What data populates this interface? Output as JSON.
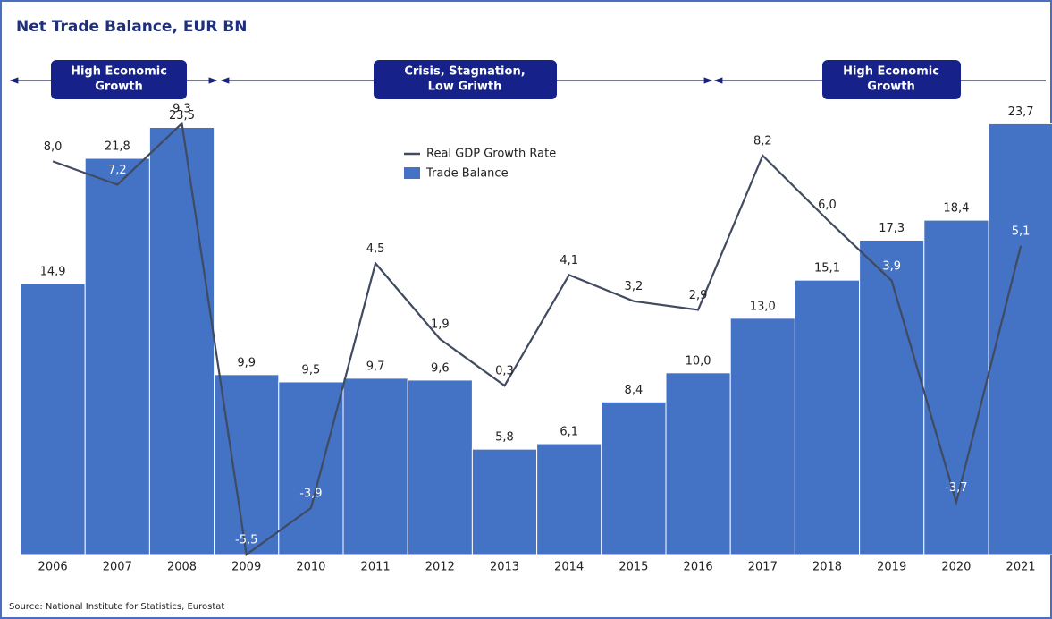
{
  "chart_data": {
    "type": "bar_line",
    "title": "Net Trade Balance, EUR BN",
    "source": "Source:  National Institute for Statistics, Eurostat",
    "annotations": [
      {
        "lines": [
          "High Economic",
          "Growth"
        ]
      },
      {
        "lines": [
          "Crisis, Stagnation,",
          "Low Griwth"
        ]
      },
      {
        "lines": [
          "High Economic",
          "Growth"
        ]
      }
    ],
    "categories": [
      "2006",
      "2007",
      "2008",
      "2009",
      "2010",
      "2011",
      "2012",
      "2013",
      "2014",
      "2015",
      "2016",
      "2017",
      "2018",
      "2019",
      "2020",
      "2021"
    ],
    "series": [
      {
        "name": "Trade Balance",
        "type": "bar",
        "color": "#4472c4",
        "values": [
          14.9,
          21.8,
          23.5,
          9.9,
          9.5,
          9.7,
          9.6,
          5.8,
          6.1,
          8.4,
          10.0,
          13.0,
          15.1,
          17.3,
          18.4,
          23.7
        ],
        "value_labels": [
          "14,9",
          "21,8",
          "23,5",
          "9,9",
          "9,5",
          "9,7",
          "9,6",
          "5,8",
          "6,1",
          "8,4",
          "10,0",
          "13,0",
          "15,1",
          "17,3",
          "18,4",
          "23,7"
        ]
      },
      {
        "name": "Real GDP Growth Rate",
        "type": "line",
        "axis": "y2",
        "color": "#404a60",
        "values": [
          8.0,
          7.2,
          9.3,
          -5.5,
          -3.9,
          4.5,
          1.9,
          0.3,
          4.1,
          3.2,
          2.9,
          8.2,
          6.0,
          3.9,
          -3.7,
          5.1
        ],
        "value_labels": [
          "8,0",
          "7,2",
          "9,3",
          "-5,5",
          "-3,9",
          "4,5",
          "1,9",
          "0,3",
          "4,1",
          "3,2",
          "2,9",
          "8,2",
          "6,0",
          "3,9",
          "-3,7",
          "5,1"
        ]
      }
    ],
    "ylim": [
      0,
      25
    ],
    "y2lim": [
      -5.5,
      10.1
    ]
  }
}
